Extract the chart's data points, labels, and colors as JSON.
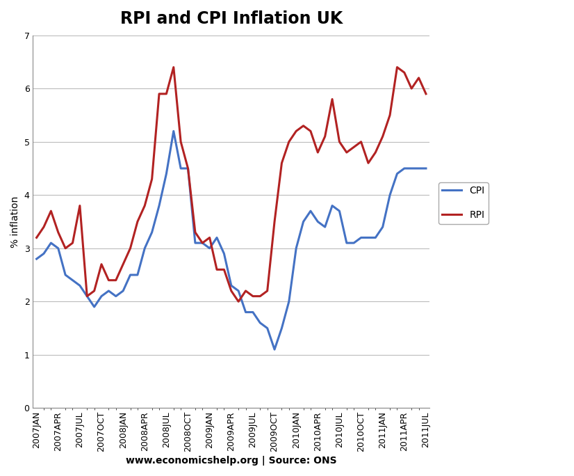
{
  "title": "RPI and CPI Inflation UK",
  "xlabel": "www.economicshelp.org | Source: ONS",
  "ylabel": "% inflation",
  "ylim": [
    0,
    7
  ],
  "yticks": [
    0,
    1,
    2,
    3,
    4,
    5,
    6,
    7
  ],
  "CPI": [
    2.8,
    2.9,
    3.1,
    3.0,
    2.5,
    2.4,
    2.3,
    2.1,
    1.9,
    2.1,
    2.2,
    2.1,
    2.2,
    2.5,
    2.5,
    3.0,
    3.3,
    3.8,
    4.4,
    5.2,
    4.5,
    4.5,
    3.1,
    3.1,
    3.0,
    3.2,
    2.9,
    2.3,
    2.2,
    1.8,
    1.8,
    1.6,
    1.5,
    1.1,
    1.5,
    2.0,
    3.0,
    3.5,
    3.7,
    3.5,
    3.4,
    3.8,
    3.7,
    3.1,
    3.1,
    3.2,
    3.2,
    3.2,
    3.4,
    4.0,
    4.4,
    4.5,
    4.5,
    4.5,
    4.5
  ],
  "RPI": [
    3.2,
    3.4,
    3.7,
    3.3,
    3.0,
    3.1,
    3.8,
    2.1,
    2.2,
    2.7,
    2.4,
    2.4,
    2.7,
    3.0,
    3.5,
    3.8,
    4.3,
    5.9,
    5.9,
    6.4,
    5.0,
    4.5,
    3.3,
    3.1,
    3.2,
    2.6,
    2.6,
    2.2,
    2.0,
    2.2,
    2.1,
    2.1,
    2.2,
    3.5,
    4.6,
    5.0,
    5.2,
    5.3,
    5.2,
    4.8,
    5.1,
    5.8,
    5.0,
    4.8,
    4.9,
    5.0,
    4.6,
    4.8,
    5.1,
    5.5,
    6.4,
    6.3,
    6.0,
    6.2,
    5.9
  ],
  "quarterly_tick_indices": [
    0,
    3,
    6,
    9,
    12,
    15,
    18,
    21,
    24,
    27,
    30,
    33,
    36,
    39,
    42,
    45,
    48,
    51,
    54
  ],
  "quarterly_tick_labels": [
    "2007JAN",
    "2007APR",
    "2007JUL",
    "2007OCT",
    "2008JAN",
    "2008APR",
    "2008JUL",
    "2008OCT",
    "2009JAN",
    "2009APR",
    "2009JUL",
    "2009OCT",
    "2010JAN",
    "2010APR",
    "2010JUL",
    "2010OCT",
    "2011JAN",
    "2011APR",
    "2011JUL"
  ],
  "CPI_color": "#4472C4",
  "RPI_color": "#B22222",
  "background_color": "#FFFFFF",
  "grid_color": "#BBBBBB",
  "title_fontsize": 17,
  "axis_label_fontsize": 10,
  "tick_fontsize": 9,
  "legend_fontsize": 10,
  "linewidth": 2.2
}
